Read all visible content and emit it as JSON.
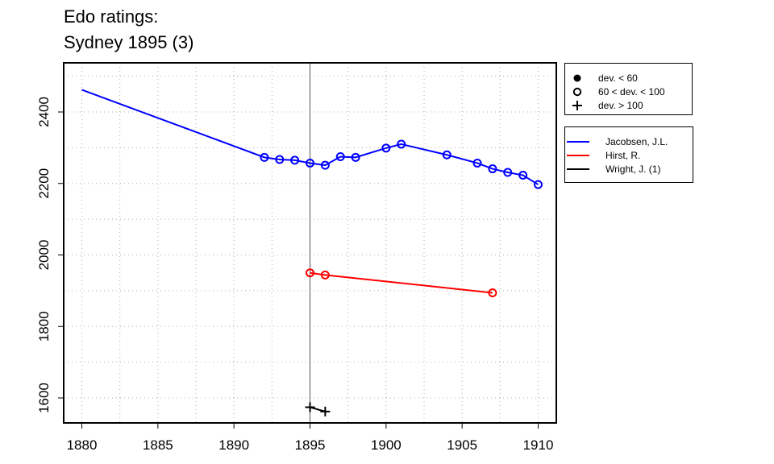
{
  "title_line1": "Edo ratings:",
  "title_line2": "Sydney 1895 (3)",
  "legend_deviation": [
    {
      "symbol": "filled-circle",
      "label": "dev. < 60"
    },
    {
      "symbol": "open-circle",
      "label": "60 < dev. < 100"
    },
    {
      "symbol": "plus",
      "label": "dev. > 100"
    }
  ],
  "legend_players": [
    {
      "name": "Jacobsen, J.L.",
      "color": "#0000ff"
    },
    {
      "name": "Hirst, R.",
      "color": "#ff0000"
    },
    {
      "name": "Wright, J. (1)",
      "color": "#000000"
    }
  ],
  "chart_data": {
    "type": "line",
    "xlim": [
      1880,
      1910
    ],
    "ylim": [
      1525,
      2525
    ],
    "x_ticks": [
      1880,
      1885,
      1890,
      1895,
      1900,
      1905,
      1910
    ],
    "y_ticks": [
      1600,
      1800,
      2000,
      2200,
      2400
    ],
    "grid": true,
    "reference_line_x": 1895,
    "series": [
      {
        "name": "Jacobsen, J.L.",
        "color": "#0000ff",
        "points": [
          {
            "x": 1880,
            "y": 2462,
            "marker": "none"
          },
          {
            "x": 1892,
            "y": 2273,
            "marker": "open-circle"
          },
          {
            "x": 1893,
            "y": 2267,
            "marker": "open-circle"
          },
          {
            "x": 1894,
            "y": 2265,
            "marker": "open-circle"
          },
          {
            "x": 1895,
            "y": 2257,
            "marker": "open-circle"
          },
          {
            "x": 1896,
            "y": 2251,
            "marker": "open-circle"
          },
          {
            "x": 1897,
            "y": 2275,
            "marker": "open-circle"
          },
          {
            "x": 1898,
            "y": 2273,
            "marker": "open-circle"
          },
          {
            "x": 1900,
            "y": 2299,
            "marker": "open-circle"
          },
          {
            "x": 1901,
            "y": 2310,
            "marker": "open-circle"
          },
          {
            "x": 1904,
            "y": 2280,
            "marker": "open-circle"
          },
          {
            "x": 1906,
            "y": 2257,
            "marker": "open-circle"
          },
          {
            "x": 1907,
            "y": 2241,
            "marker": "open-circle"
          },
          {
            "x": 1908,
            "y": 2231,
            "marker": "open-circle"
          },
          {
            "x": 1909,
            "y": 2223,
            "marker": "open-circle"
          },
          {
            "x": 1910,
            "y": 2197,
            "marker": "open-circle"
          }
        ]
      },
      {
        "name": "Hirst, R.",
        "color": "#ff0000",
        "points": [
          {
            "x": 1895,
            "y": 1950,
            "marker": "open-circle"
          },
          {
            "x": 1896,
            "y": 1944,
            "marker": "open-circle"
          },
          {
            "x": 1907,
            "y": 1894,
            "marker": "open-circle"
          }
        ]
      },
      {
        "name": "Wright, J. (1)",
        "color": "#000000",
        "points": [
          {
            "x": 1895,
            "y": 1574,
            "marker": "plus"
          },
          {
            "x": 1896,
            "y": 1562,
            "marker": "plus"
          }
        ]
      }
    ]
  }
}
